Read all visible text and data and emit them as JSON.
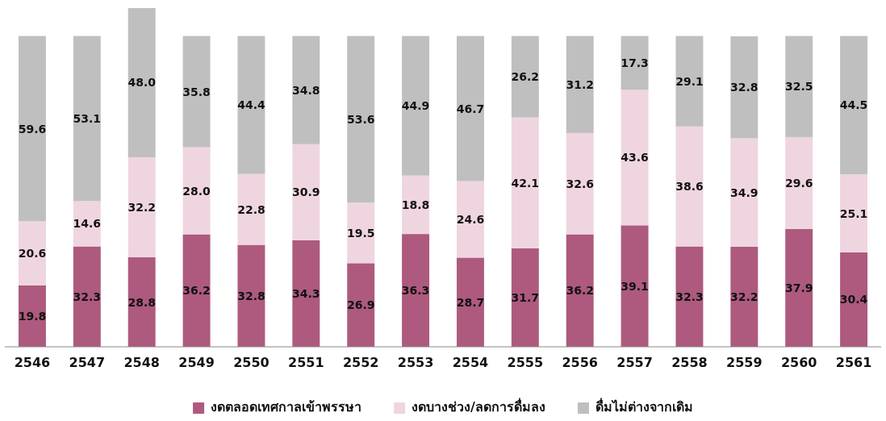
{
  "chart_data": {
    "type": "bar",
    "stacked": true,
    "categories": [
      "2546",
      "2547",
      "2548",
      "2549",
      "2550",
      "2551",
      "2552",
      "2553",
      "2554",
      "2555",
      "2556",
      "2557",
      "2558",
      "2559",
      "2560",
      "2561"
    ],
    "series": [
      {
        "name": "งดตลอดเทศกาลเข้าพรรษา",
        "color": "#ad5a7e",
        "values": [
          19.8,
          32.3,
          28.8,
          36.2,
          32.8,
          34.3,
          26.9,
          36.3,
          28.7,
          31.7,
          36.2,
          39.1,
          32.3,
          32.2,
          37.9,
          30.4
        ],
        "value_labels": [
          "19.8",
          "32.3",
          "28.8",
          "36.2",
          "32.8",
          "34.3",
          "26.9",
          "36.3",
          "28.7",
          "31.7",
          "36.2",
          "39.1",
          "32.3",
          "32.2",
          "37.9",
          "30.4"
        ]
      },
      {
        "name": "งดบางช่วง/ลดการดื่มลง",
        "color": "#efd5e0",
        "values": [
          20.6,
          14.6,
          32.2,
          28.0,
          22.8,
          30.9,
          19.5,
          18.8,
          24.6,
          42.1,
          32.6,
          43.6,
          38.6,
          34.9,
          29.6,
          25.1
        ],
        "value_labels": [
          "20.6",
          "14.6",
          "32.2",
          "28.0",
          "22.8",
          "30.9",
          "19.5",
          "18.8",
          "24.6",
          "42.1",
          "32.6",
          "43.6",
          "38.6",
          "34.9",
          "29.6",
          "25.1"
        ]
      },
      {
        "name": "ดื่มไม่ต่างจากเดิม",
        "color": "#bfbfbf",
        "values": [
          59.6,
          53.1,
          48.0,
          35.8,
          44.4,
          34.8,
          53.6,
          44.9,
          46.7,
          26.2,
          31.2,
          17.3,
          29.1,
          32.8,
          32.5,
          44.5
        ],
        "value_labels": [
          "59.6",
          "53.1",
          "48.0",
          "35.8",
          "44.4",
          "34.8",
          "53.6",
          "44.9",
          "46.7",
          "26.2",
          "31.2",
          "17.3",
          "29.1",
          "32.8",
          "32.5",
          "44.5"
        ]
      }
    ],
    "ylim": [
      0,
      109
    ],
    "tick_labels": "x",
    "legend": "bottom"
  }
}
